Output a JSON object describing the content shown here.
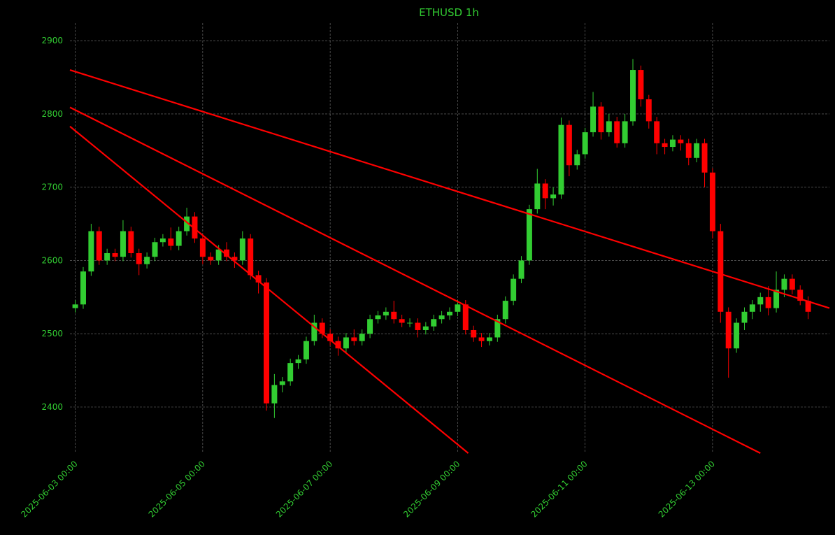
{
  "chart_data": {
    "type": "candlestick",
    "title": "ETHUSD 1h",
    "x": [
      "2025-06-03 00:00",
      "2025-06-03 03:00",
      "2025-06-03 06:00",
      "2025-06-03 09:00",
      "2025-06-03 12:00",
      "2025-06-03 15:00",
      "2025-06-03 18:00",
      "2025-06-03 21:00",
      "2025-06-04 00:00",
      "2025-06-04 03:00",
      "2025-06-04 06:00",
      "2025-06-04 09:00",
      "2025-06-04 12:00",
      "2025-06-04 15:00",
      "2025-06-04 18:00",
      "2025-06-04 21:00",
      "2025-06-05 00:00",
      "2025-06-05 03:00",
      "2025-06-05 06:00",
      "2025-06-05 09:00",
      "2025-06-05 12:00",
      "2025-06-05 15:00",
      "2025-06-05 18:00",
      "2025-06-05 21:00",
      "2025-06-06 00:00",
      "2025-06-06 03:00",
      "2025-06-06 06:00",
      "2025-06-06 09:00",
      "2025-06-06 12:00",
      "2025-06-06 15:00",
      "2025-06-06 18:00",
      "2025-06-06 21:00",
      "2025-06-07 00:00",
      "2025-06-07 03:00",
      "2025-06-07 06:00",
      "2025-06-07 09:00",
      "2025-06-07 12:00",
      "2025-06-07 15:00",
      "2025-06-07 18:00",
      "2025-06-07 21:00",
      "2025-06-08 00:00",
      "2025-06-08 03:00",
      "2025-06-08 06:00",
      "2025-06-08 09:00",
      "2025-06-08 12:00",
      "2025-06-08 15:00",
      "2025-06-08 18:00",
      "2025-06-08 21:00",
      "2025-06-09 00:00",
      "2025-06-09 03:00",
      "2025-06-09 06:00",
      "2025-06-09 09:00",
      "2025-06-09 12:00",
      "2025-06-09 15:00",
      "2025-06-09 18:00",
      "2025-06-09 21:00",
      "2025-06-10 00:00",
      "2025-06-10 03:00",
      "2025-06-10 06:00",
      "2025-06-10 09:00",
      "2025-06-10 12:00",
      "2025-06-10 15:00",
      "2025-06-10 18:00",
      "2025-06-10 21:00",
      "2025-06-11 00:00",
      "2025-06-11 03:00",
      "2025-06-11 06:00",
      "2025-06-11 09:00",
      "2025-06-11 12:00",
      "2025-06-11 15:00",
      "2025-06-11 18:00",
      "2025-06-11 21:00",
      "2025-06-12 00:00",
      "2025-06-12 03:00",
      "2025-06-12 06:00",
      "2025-06-12 09:00",
      "2025-06-12 12:00",
      "2025-06-12 15:00",
      "2025-06-12 18:00",
      "2025-06-12 21:00",
      "2025-06-13 00:00",
      "2025-06-13 03:00",
      "2025-06-13 06:00",
      "2025-06-13 09:00",
      "2025-06-13 12:00",
      "2025-06-13 15:00",
      "2025-06-13 18:00",
      "2025-06-13 21:00",
      "2025-06-14 00:00",
      "2025-06-14 03:00",
      "2025-06-14 06:00",
      "2025-06-14 09:00",
      "2025-06-14 12:00"
    ],
    "open": [
      2535,
      2540,
      2585,
      2640,
      2600,
      2610,
      2605,
      2640,
      2610,
      2595,
      2605,
      2625,
      2630,
      2620,
      2640,
      2660,
      2630,
      2605,
      2600,
      2615,
      2605,
      2600,
      2630,
      2580,
      2570,
      2405,
      2430,
      2435,
      2460,
      2465,
      2490,
      2515,
      2500,
      2490,
      2480,
      2495,
      2490,
      2500,
      2520,
      2525,
      2530,
      2520,
      2515,
      2515,
      2505,
      2510,
      2520,
      2525,
      2530,
      2540,
      2505,
      2495,
      2490,
      2495,
      2520,
      2545,
      2575,
      2600,
      2670,
      2705,
      2685,
      2690,
      2785,
      2730,
      2745,
      2775,
      2810,
      2775,
      2790,
      2760,
      2790,
      2860,
      2820,
      2790,
      2760,
      2755,
      2765,
      2760,
      2740,
      2760,
      2720,
      2640,
      2530,
      2480,
      2515,
      2530,
      2540,
      2550,
      2535,
      2560,
      2575,
      2560,
      2545
    ],
    "high": [
      2546,
      2591,
      2650,
      2646,
      2616,
      2616,
      2655,
      2646,
      2616,
      2611,
      2631,
      2636,
      2645,
      2646,
      2672,
      2666,
      2636,
      2611,
      2621,
      2625,
      2611,
      2640,
      2636,
      2586,
      2576,
      2445,
      2441,
      2466,
      2471,
      2496,
      2526,
      2521,
      2506,
      2496,
      2501,
      2506,
      2506,
      2526,
      2531,
      2536,
      2545,
      2526,
      2521,
      2521,
      2516,
      2526,
      2531,
      2536,
      2546,
      2546,
      2511,
      2501,
      2501,
      2526,
      2551,
      2581,
      2606,
      2676,
      2725,
      2711,
      2700,
      2795,
      2791,
      2751,
      2781,
      2830,
      2816,
      2800,
      2796,
      2800,
      2875,
      2866,
      2826,
      2796,
      2766,
      2771,
      2771,
      2766,
      2766,
      2766,
      2726,
      2650,
      2536,
      2521,
      2536,
      2546,
      2556,
      2565,
      2585,
      2581,
      2581,
      2566,
      2551
    ],
    "low": [
      2529,
      2534,
      2579,
      2594,
      2594,
      2599,
      2599,
      2604,
      2580,
      2589,
      2599,
      2619,
      2614,
      2614,
      2634,
      2624,
      2595,
      2594,
      2594,
      2599,
      2590,
      2594,
      2574,
      2555,
      2395,
      2385,
      2420,
      2429,
      2452,
      2459,
      2484,
      2494,
      2484,
      2470,
      2474,
      2484,
      2484,
      2494,
      2514,
      2519,
      2514,
      2509,
      2509,
      2495,
      2499,
      2504,
      2514,
      2519,
      2524,
      2499,
      2489,
      2482,
      2484,
      2489,
      2514,
      2539,
      2569,
      2594,
      2664,
      2670,
      2675,
      2684,
      2715,
      2724,
      2739,
      2769,
      2765,
      2769,
      2754,
      2754,
      2784,
      2810,
      2780,
      2745,
      2745,
      2749,
      2750,
      2730,
      2734,
      2700,
      2630,
      2515,
      2440,
      2474,
      2505,
      2520,
      2530,
      2525,
      2529,
      2550,
      2554,
      2539,
      2520
    ],
    "close": [
      2540,
      2585,
      2640,
      2600,
      2610,
      2605,
      2640,
      2610,
      2595,
      2605,
      2625,
      2630,
      2620,
      2640,
      2660,
      2630,
      2605,
      2600,
      2615,
      2605,
      2600,
      2630,
      2580,
      2570,
      2405,
      2430,
      2435,
      2460,
      2465,
      2490,
      2515,
      2500,
      2490,
      2480,
      2495,
      2490,
      2500,
      2520,
      2525,
      2530,
      2520,
      2515,
      2515,
      2505,
      2510,
      2520,
      2525,
      2530,
      2540,
      2505,
      2495,
      2490,
      2495,
      2520,
      2545,
      2575,
      2600,
      2670,
      2705,
      2685,
      2690,
      2785,
      2730,
      2745,
      2775,
      2810,
      2775,
      2790,
      2760,
      2790,
      2860,
      2820,
      2790,
      2760,
      2755,
      2765,
      2760,
      2740,
      2760,
      2720,
      2640,
      2530,
      2480,
      2515,
      2530,
      2540,
      2550,
      2535,
      2560,
      2575,
      2560,
      2545,
      2530
    ],
    "up_color": "#32cd32",
    "down_color": "#ff0000",
    "xlim": [
      "2025-06-02 22:00",
      "2025-06-14 20:00"
    ],
    "xticks": [
      "2025-06-03 00:00",
      "2025-06-05 00:00",
      "2025-06-07 00:00",
      "2025-06-09 00:00",
      "2025-06-11 00:00",
      "2025-06-13 00:00"
    ],
    "ylim": [
      2337,
      2924
    ],
    "yticks": [
      2400,
      2500,
      2600,
      2700,
      2800,
      2900
    ],
    "grid": true,
    "trendlines": [
      {
        "x": [
          "2025-06-02 22:00",
          "2025-06-14 20:00"
        ],
        "y": [
          2860,
          2535
        ],
        "color": "#ff0000"
      },
      {
        "x": [
          "2025-06-02 22:00",
          "2025-06-13 18:00"
        ],
        "y": [
          2809,
          2337
        ],
        "color": "#ff0000"
      },
      {
        "x": [
          "2025-06-02 22:00",
          "2025-06-09 04:00"
        ],
        "y": [
          2783,
          2337
        ],
        "color": "#ff0000"
      }
    ]
  }
}
